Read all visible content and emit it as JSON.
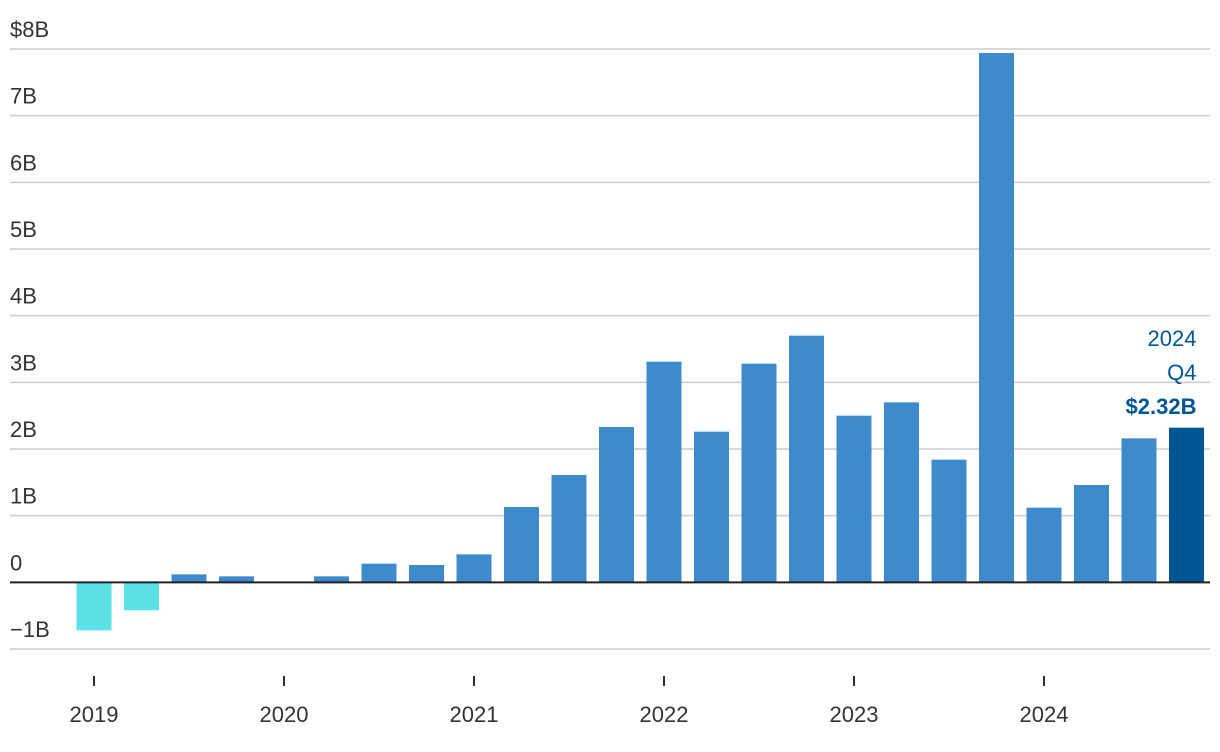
{
  "chart_data": {
    "type": "bar",
    "categories": [
      "2019",
      null,
      null,
      null,
      "2020",
      null,
      null,
      null,
      "2021",
      null,
      null,
      null,
      "2022",
      null,
      null,
      null,
      "2023",
      null,
      null,
      null,
      "2024",
      null,
      null,
      null
    ],
    "values": [
      -0.72,
      -0.42,
      0.12,
      0.09,
      0,
      0.09,
      0.28,
      0.26,
      0.42,
      1.13,
      1.61,
      2.33,
      3.31,
      2.26,
      3.28,
      3.7,
      2.5,
      2.7,
      1.84,
      7.94,
      1.12,
      1.46,
      2.16,
      2.32
    ],
    "value_labels": [
      null,
      null,
      null,
      null,
      null,
      null,
      null,
      null,
      null,
      null,
      null,
      null,
      null,
      null,
      null,
      null,
      null,
      null,
      null,
      null,
      null,
      null,
      null,
      "$2.32B"
    ],
    "colors": [
      "#5ce1e6",
      "#5ce1e6",
      "#3f8acb",
      "#3f8acb",
      "#3f8acb",
      "#3f8acb",
      "#3f8acb",
      "#3f8acb",
      "#3f8acb",
      "#3f8acb",
      "#3f8acb",
      "#3f8acb",
      "#3f8acb",
      "#3f8acb",
      "#3f8acb",
      "#3f8acb",
      "#3f8acb",
      "#3f8acb",
      "#3f8acb",
      "#3f8acb",
      "#3f8acb",
      "#3f8acb",
      "#3f8acb",
      "#005594"
    ],
    "annotation": [
      "2024",
      "Q4"
    ],
    "ylim": [
      -1,
      8
    ],
    "yticks": [
      {
        "value": -1,
        "label": "−1B"
      },
      0,
      {
        "value": 1,
        "label": "1B"
      },
      {
        "value": 2,
        "label": "2B"
      },
      {
        "value": 3,
        "label": "3B"
      },
      {
        "value": 4,
        "label": "4B"
      },
      {
        "value": 5,
        "label": "5B"
      },
      {
        "value": 6,
        "label": "6B"
      },
      {
        "value": 7,
        "label": "7B"
      },
      {
        "value": 8,
        "label": "$8B"
      }
    ],
    "grid": true
  }
}
